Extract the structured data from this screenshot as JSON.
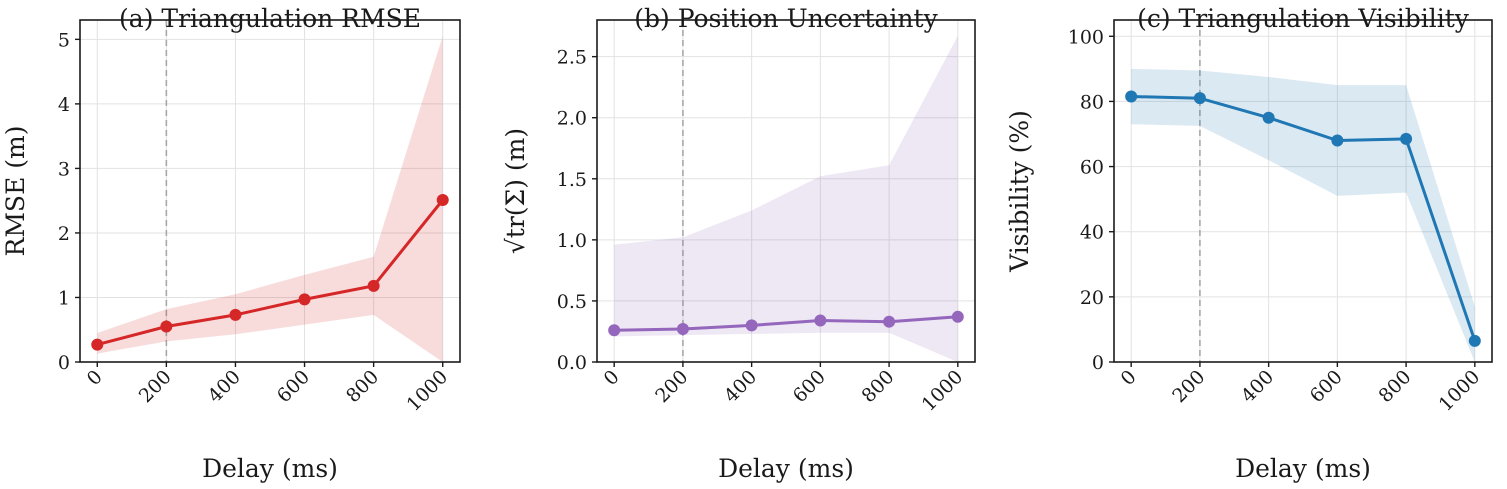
{
  "chart_data": [
    {
      "type": "line",
      "title": "(a) Triangulation RMSE",
      "xlabel": "Delay (ms)",
      "ylabel": "RMSE (m)",
      "x": [
        0,
        200,
        400,
        600,
        800,
        1000
      ],
      "xticks": [
        "0",
        "200",
        "400",
        "600",
        "800",
        "1000"
      ],
      "xlim": [
        -50,
        1050
      ],
      "ylim": [
        0,
        5.3
      ],
      "yticks": [
        0,
        1,
        2,
        3,
        4,
        5
      ],
      "ytick_labels": [
        "0",
        "1",
        "2",
        "3",
        "4",
        "5"
      ],
      "series": [
        {
          "values": [
            0.27,
            0.55,
            0.73,
            0.97,
            1.18,
            2.51
          ],
          "band_lower": [
            0.13,
            0.32,
            0.43,
            0.58,
            0.73,
            0.0
          ],
          "band_upper": [
            0.45,
            0.82,
            1.05,
            1.35,
            1.63,
            5.05
          ],
          "color": "#d62728"
        }
      ],
      "reference_line_x": 200,
      "grid": true
    },
    {
      "type": "line",
      "title": "(b) Position Uncertainty",
      "xlabel": "Delay (ms)",
      "ylabel": "√tr(Σ) (m)",
      "x": [
        0,
        200,
        400,
        600,
        800,
        1000
      ],
      "xticks": [
        "0",
        "200",
        "400",
        "600",
        "800",
        "1000"
      ],
      "xlim": [
        -50,
        1050
      ],
      "ylim": [
        0,
        2.8
      ],
      "yticks": [
        0,
        0.5,
        1.0,
        1.5,
        2.0,
        2.5
      ],
      "ytick_labels": [
        "0.0",
        "0.5",
        "1.0",
        "1.5",
        "2.0",
        "2.5"
      ],
      "series": [
        {
          "values": [
            0.26,
            0.27,
            0.3,
            0.34,
            0.33,
            0.37
          ],
          "band_lower": [
            0.21,
            0.22,
            0.23,
            0.24,
            0.24,
            0.0
          ],
          "band_upper": [
            0.96,
            1.02,
            1.24,
            1.52,
            1.61,
            2.67
          ],
          "color": "#9467bd"
        }
      ],
      "reference_line_x": 200,
      "grid": true
    },
    {
      "type": "line",
      "title": "(c) Triangulation Visibility",
      "xlabel": "Delay (ms)",
      "ylabel": "Visibility (%)",
      "x": [
        0,
        200,
        400,
        600,
        800,
        1000
      ],
      "xticks": [
        "0",
        "200",
        "400",
        "600",
        "800",
        "1000"
      ],
      "xlim": [
        -50,
        1050
      ],
      "ylim": [
        0,
        105
      ],
      "yticks": [
        0,
        20,
        40,
        60,
        80,
        100
      ],
      "ytick_labels": [
        "0",
        "20",
        "40",
        "60",
        "80",
        "100"
      ],
      "series": [
        {
          "values": [
            81.5,
            81.0,
            75.0,
            68.0,
            68.5,
            6.5
          ],
          "band_lower": [
            73.0,
            72.5,
            62.0,
            51.0,
            52.0,
            0.0
          ],
          "band_upper": [
            90.0,
            89.5,
            87.5,
            85.0,
            85.0,
            17.0
          ],
          "color": "#1f77b4"
        }
      ],
      "reference_line_x": 200,
      "grid": true
    }
  ]
}
